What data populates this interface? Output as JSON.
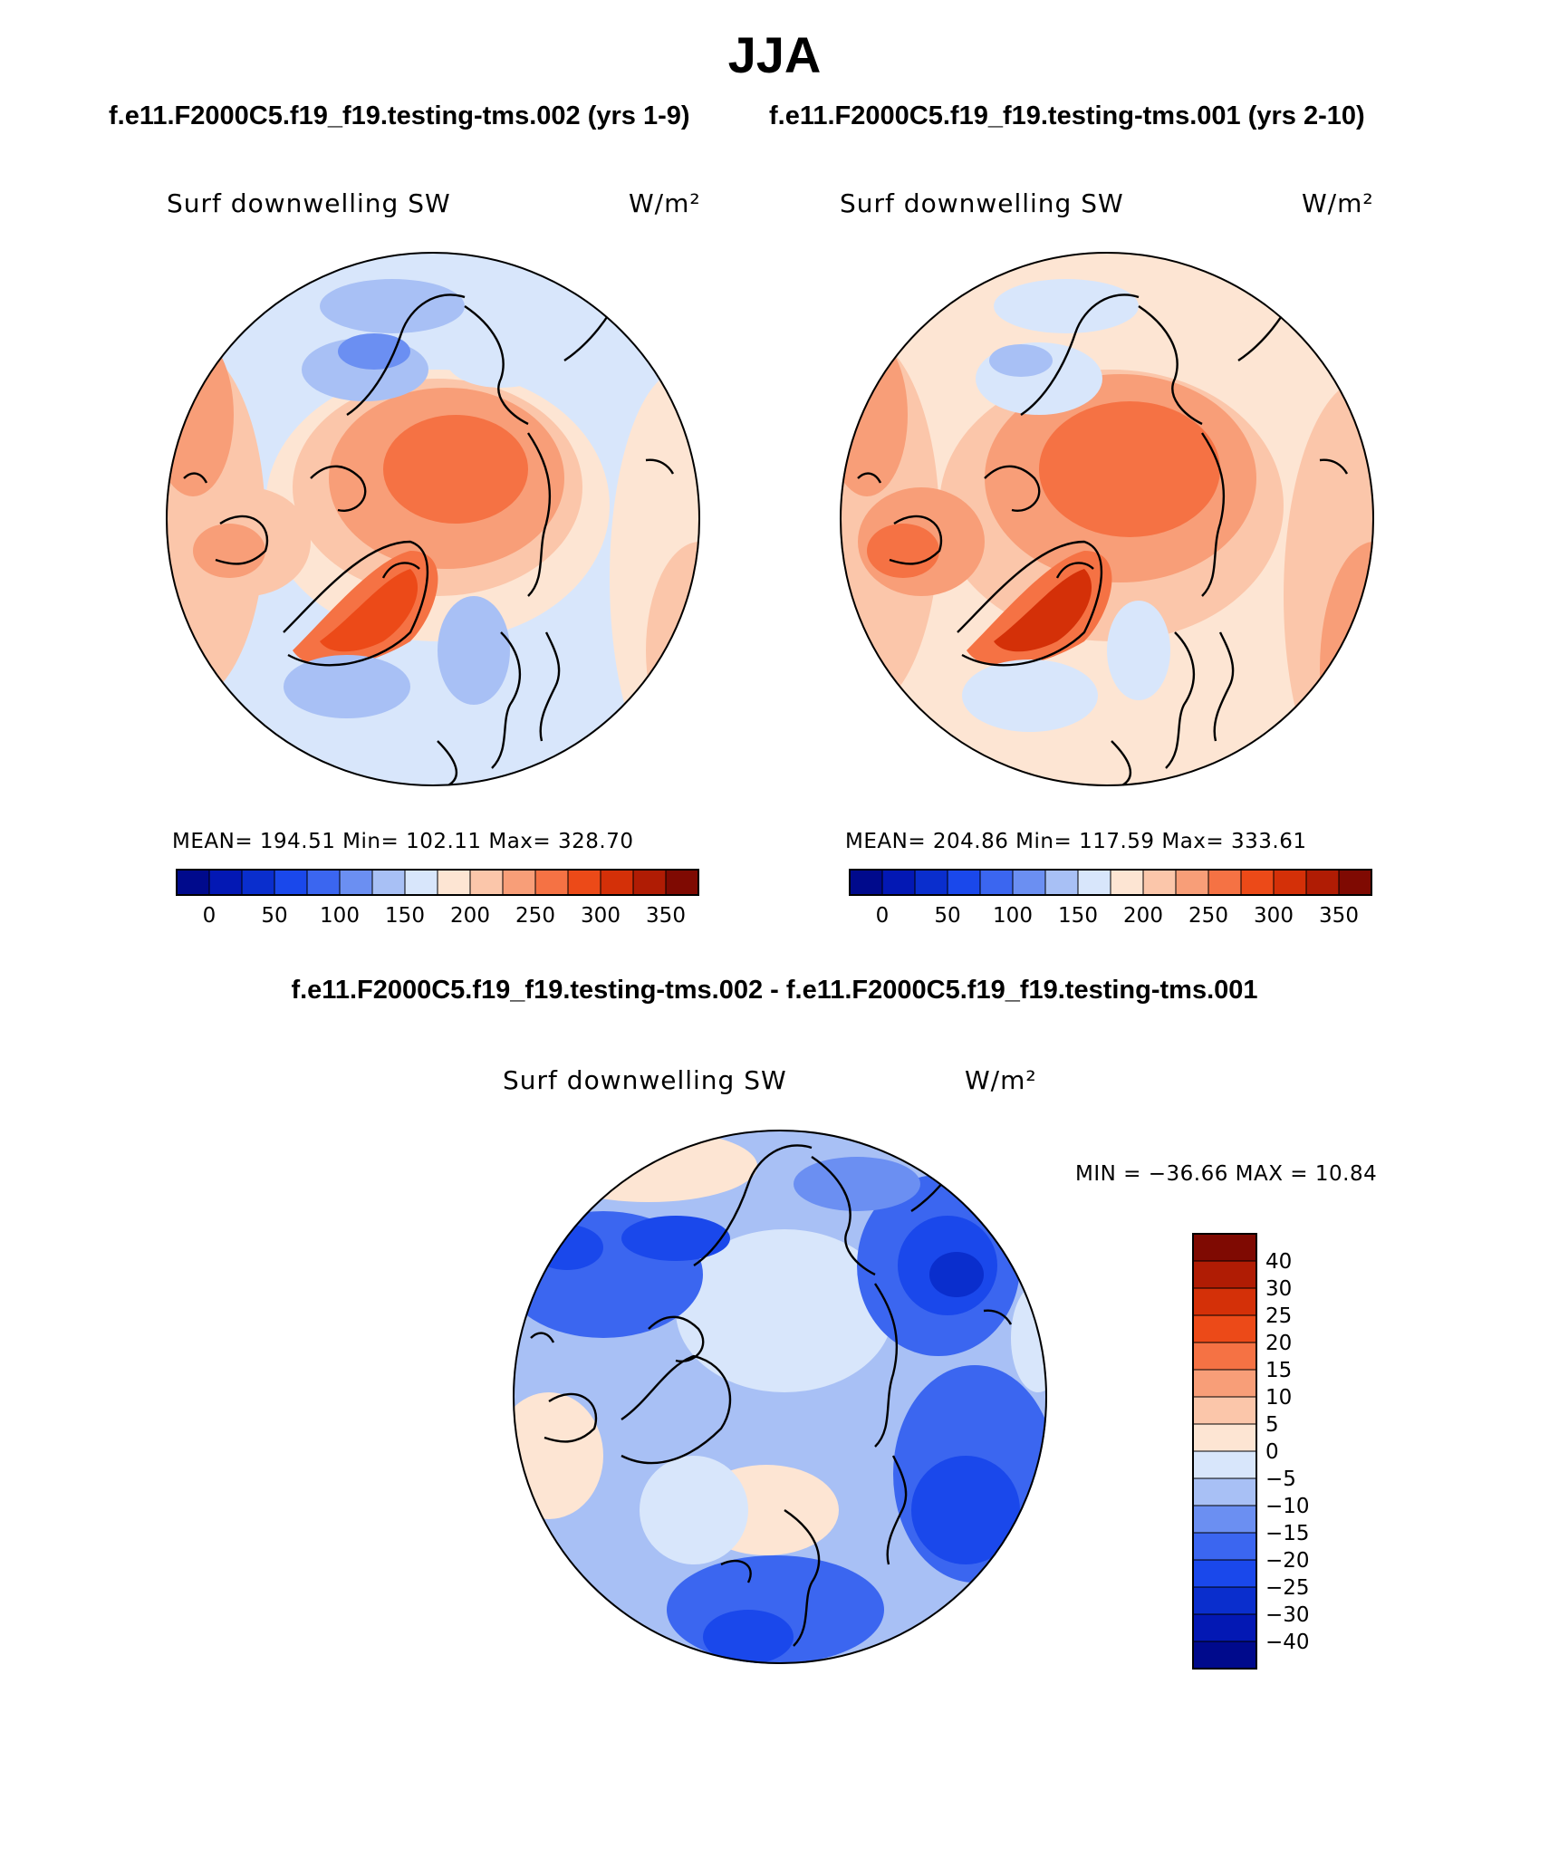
{
  "figure": {
    "title": "JJA",
    "left_subtitle": "f.e11.F2000C5.f19_f19.testing-tms.002 (yrs 1-9)",
    "right_subtitle": "f.e11.F2000C5.f19_f19.testing-tms.001 (yrs 2-10)",
    "diff_title": "f.e11.F2000C5.f19_f19.testing-tms.002 - f.e11.F2000C5.f19_f19.testing-tms.001"
  },
  "panels": [
    {
      "variable": "Surf downwelling SW",
      "units": "W/m²",
      "stats": "MEAN= 194.51   Min= 102.11   Max= 328.70"
    },
    {
      "variable": "Surf downwelling SW",
      "units": "W/m²",
      "stats": "MEAN= 204.86   Min= 117.59   Max= 333.61"
    }
  ],
  "diff_panel": {
    "variable": "Surf downwelling SW",
    "units": "W/m²",
    "stats": "MIN = −36.66  MAX =   10.84"
  },
  "colorbar_abs": {
    "labels": [
      "0",
      "50",
      "100",
      "150",
      "200",
      "250",
      "300",
      "350"
    ],
    "colors": [
      "#000a8c",
      "#0318b4",
      "#0a2ecd",
      "#1a48eb",
      "#3b66f0",
      "#6b8ff2",
      "#a8c0f5",
      "#d8e6fb",
      "#fde5d3",
      "#fbc6aa",
      "#f89e78",
      "#f57244",
      "#ec4a18",
      "#d43008",
      "#b01c04",
      "#7f0a02"
    ]
  },
  "colorbar_diff": {
    "labels": [
      "40",
      "30",
      "25",
      "20",
      "15",
      "10",
      "5",
      "0",
      "−5",
      "−10",
      "−15",
      "−20",
      "−25",
      "−30",
      "−40"
    ],
    "colors": [
      "#7f0a02",
      "#b01c04",
      "#d43008",
      "#ec4a18",
      "#f57244",
      "#f89e78",
      "#fbc6aa",
      "#fde5d3",
      "#d8e6fb",
      "#a8c0f5",
      "#6b8ff2",
      "#3b66f0",
      "#1a48eb",
      "#0a2ecd",
      "#0318b4",
      "#000a8c"
    ]
  },
  "chart_data": {
    "type": "heatmap",
    "projection": "north polar stereographic",
    "season": "JJA",
    "variable": "Surf downwelling SW",
    "units": "W/m²",
    "maps": [
      {
        "case": "f.e11.F2000C5.f19_f19.testing-tms.002 (yrs 1-9)",
        "mean": 194.51,
        "min": 102.11,
        "max": 328.7
      },
      {
        "case": "f.e11.F2000C5.f19_f19.testing-tms.001 (yrs 2-10)",
        "mean": 204.86,
        "min": 117.59,
        "max": 333.61
      },
      {
        "case": "f.e11.F2000C5.f19_f19.testing-tms.002 - f.e11.F2000C5.f19_f19.testing-tms.001",
        "min": -36.66,
        "max": 10.84
      }
    ],
    "abs_levels": [
      0,
      25,
      50,
      75,
      100,
      125,
      150,
      175,
      200,
      225,
      250,
      275,
      300,
      325,
      350
    ],
    "diff_levels": [
      -40,
      -30,
      -25,
      -20,
      -15,
      -10,
      -5,
      0,
      5,
      10,
      15,
      20,
      25,
      30,
      40
    ]
  }
}
